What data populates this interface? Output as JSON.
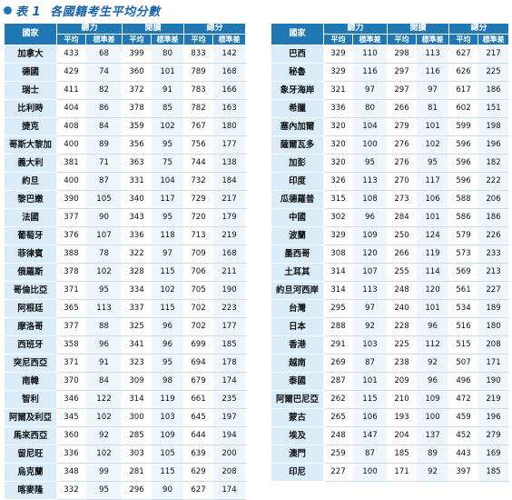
{
  "title": {
    "text": "表 1  各國籍考生平均分數",
    "colors": {
      "accent": "#1f78b4",
      "title": "#1b64a8",
      "country_bg": "#d9ecf8"
    }
  },
  "headers": {
    "country": "國家",
    "groups": [
      "聽力",
      "閱讀",
      "總分"
    ],
    "sub": [
      "平均",
      "標準差",
      "平均",
      "標準差",
      "平均",
      "標準差"
    ]
  },
  "left_rows": [
    {
      "country": "加拿大",
      "vals": [
        "433",
        "68",
        "399",
        "80",
        "833",
        "142"
      ]
    },
    {
      "country": "德國",
      "vals": [
        "429",
        "74",
        "360",
        "101",
        "789",
        "168"
      ]
    },
    {
      "country": "瑞士",
      "vals": [
        "411",
        "82",
        "372",
        "91",
        "783",
        "166"
      ]
    },
    {
      "country": "比利時",
      "vals": [
        "404",
        "86",
        "378",
        "85",
        "782",
        "163"
      ]
    },
    {
      "country": "捷克",
      "vals": [
        "408",
        "84",
        "359",
        "102",
        "767",
        "180"
      ]
    },
    {
      "country": "哥斯大黎加",
      "vals": [
        "400",
        "89",
        "356",
        "95",
        "756",
        "177"
      ]
    },
    {
      "country": "義大利",
      "vals": [
        "381",
        "71",
        "363",
        "75",
        "744",
        "138"
      ]
    },
    {
      "country": "約旦",
      "vals": [
        "400",
        "87",
        "331",
        "104",
        "732",
        "184"
      ]
    },
    {
      "country": "黎巴嫩",
      "vals": [
        "390",
        "105",
        "340",
        "117",
        "729",
        "217"
      ]
    },
    {
      "country": "法國",
      "vals": [
        "377",
        "90",
        "343",
        "95",
        "720",
        "179"
      ]
    },
    {
      "country": "葡萄牙",
      "vals": [
        "376",
        "107",
        "336",
        "118",
        "713",
        "219"
      ]
    },
    {
      "country": "菲律賓",
      "vals": [
        "388",
        "78",
        "322",
        "97",
        "709",
        "168"
      ]
    },
    {
      "country": "俄羅斯",
      "vals": [
        "378",
        "102",
        "328",
        "115",
        "706",
        "211"
      ]
    },
    {
      "country": "哥倫比亞",
      "vals": [
        "371",
        "95",
        "334",
        "102",
        "705",
        "190"
      ]
    },
    {
      "country": "阿根廷",
      "vals": [
        "365",
        "113",
        "337",
        "115",
        "702",
        "223"
      ]
    },
    {
      "country": "摩洛哥",
      "vals": [
        "377",
        "88",
        "325",
        "96",
        "702",
        "177"
      ]
    },
    {
      "country": "西班牙",
      "vals": [
        "358",
        "96",
        "341",
        "96",
        "699",
        "185"
      ]
    },
    {
      "country": "突尼西亞",
      "vals": [
        "371",
        "91",
        "323",
        "95",
        "694",
        "178"
      ]
    },
    {
      "country": "南韓",
      "vals": [
        "370",
        "84",
        "309",
        "98",
        "679",
        "174"
      ]
    },
    {
      "country": "智利",
      "vals": [
        "346",
        "122",
        "314",
        "119",
        "661",
        "235"
      ]
    },
    {
      "country": "阿爾及利亞",
      "vals": [
        "345",
        "102",
        "300",
        "103",
        "645",
        "197"
      ]
    },
    {
      "country": "馬來西亞",
      "vals": [
        "360",
        "92",
        "285",
        "109",
        "644",
        "194"
      ]
    },
    {
      "country": "留尼旺",
      "vals": [
        "336",
        "102",
        "303",
        "105",
        "639",
        "200"
      ]
    },
    {
      "country": "烏克蘭",
      "vals": [
        "348",
        "99",
        "281",
        "115",
        "629",
        "208"
      ]
    },
    {
      "country": "喀麥隆",
      "vals": [
        "332",
        "95",
        "296",
        "90",
        "627",
        "174"
      ]
    }
  ],
  "right_rows": [
    {
      "country": "巴西",
      "vals": [
        "329",
        "110",
        "298",
        "113",
        "627",
        "217"
      ]
    },
    {
      "country": "秘魯",
      "vals": [
        "329",
        "116",
        "297",
        "116",
        "626",
        "225"
      ]
    },
    {
      "country": "象牙海岸",
      "vals": [
        "321",
        "97",
        "297",
        "97",
        "617",
        "186"
      ]
    },
    {
      "country": "希臘",
      "vals": [
        "336",
        "80",
        "266",
        "81",
        "602",
        "151"
      ]
    },
    {
      "country": "塞內加爾",
      "vals": [
        "320",
        "104",
        "279",
        "101",
        "599",
        "198"
      ]
    },
    {
      "country": "薩爾瓦多",
      "vals": [
        "320",
        "100",
        "276",
        "102",
        "596",
        "196"
      ]
    },
    {
      "country": "加彭",
      "vals": [
        "320",
        "95",
        "276",
        "95",
        "596",
        "182"
      ]
    },
    {
      "country": "印度",
      "vals": [
        "326",
        "113",
        "270",
        "117",
        "596",
        "222"
      ]
    },
    {
      "country": "瓜德羅普",
      "vals": [
        "315",
        "108",
        "273",
        "106",
        "588",
        "206"
      ]
    },
    {
      "country": "中國",
      "vals": [
        "302",
        "96",
        "284",
        "101",
        "586",
        "186"
      ]
    },
    {
      "country": "波蘭",
      "vals": [
        "329",
        "109",
        "250",
        "124",
        "579",
        "226"
      ]
    },
    {
      "country": "墨西哥",
      "vals": [
        "308",
        "120",
        "266",
        "119",
        "573",
        "233"
      ]
    },
    {
      "country": "土耳其",
      "vals": [
        "314",
        "107",
        "255",
        "114",
        "569",
        "213"
      ]
    },
    {
      "country": "約旦河西岸",
      "vals": [
        "314",
        "113",
        "248",
        "120",
        "561",
        "227"
      ]
    },
    {
      "country": "台灣",
      "vals": [
        "295",
        "97",
        "240",
        "101",
        "534",
        "189"
      ]
    },
    {
      "country": "日本",
      "vals": [
        "288",
        "92",
        "228",
        "96",
        "516",
        "180"
      ]
    },
    {
      "country": "香港",
      "vals": [
        "291",
        "103",
        "225",
        "112",
        "515",
        "208"
      ]
    },
    {
      "country": "越南",
      "vals": [
        "269",
        "87",
        "238",
        "92",
        "507",
        "171"
      ]
    },
    {
      "country": "泰國",
      "vals": [
        "287",
        "101",
        "209",
        "96",
        "496",
        "190"
      ]
    },
    {
      "country": "阿爾巴尼亞",
      "vals": [
        "262",
        "115",
        "210",
        "109",
        "472",
        "219"
      ]
    },
    {
      "country": "蒙古",
      "vals": [
        "265",
        "106",
        "193",
        "100",
        "459",
        "196"
      ]
    },
    {
      "country": "埃及",
      "vals": [
        "248",
        "147",
        "204",
        "137",
        "452",
        "279"
      ]
    },
    {
      "country": "澳門",
      "vals": [
        "259",
        "87",
        "185",
        "89",
        "443",
        "169"
      ]
    },
    {
      "country": "印尼",
      "vals": [
        "227",
        "100",
        "171",
        "92",
        "397",
        "185"
      ]
    }
  ]
}
